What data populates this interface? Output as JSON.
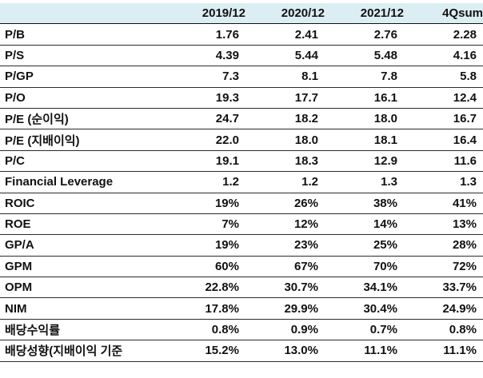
{
  "table": {
    "headers": [
      "",
      "2019/12",
      "2020/12",
      "2021/12",
      "4Qsum"
    ],
    "rows": [
      {
        "label": "P/B",
        "values": [
          "1.76",
          "2.41",
          "2.76",
          "2.28"
        ]
      },
      {
        "label": "P/S",
        "values": [
          "4.39",
          "5.44",
          "5.48",
          "4.16"
        ]
      },
      {
        "label": "P/GP",
        "values": [
          "7.3",
          "8.1",
          "7.8",
          "5.8"
        ]
      },
      {
        "label": "P/O",
        "values": [
          "19.3",
          "17.7",
          "16.1",
          "12.4"
        ]
      },
      {
        "label": "P/E (순이익)",
        "values": [
          "24.7",
          "18.2",
          "18.0",
          "16.7"
        ]
      },
      {
        "label": "P/E (지배이익)",
        "values": [
          "22.0",
          "18.0",
          "18.1",
          "16.4"
        ]
      },
      {
        "label": "P/C",
        "values": [
          "19.1",
          "18.3",
          "12.9",
          "11.6"
        ]
      },
      {
        "label": "Financial Leverage",
        "values": [
          "1.2",
          "1.2",
          "1.3",
          "1.3"
        ]
      },
      {
        "label": "ROIC",
        "values": [
          "19%",
          "26%",
          "38%",
          "41%"
        ]
      },
      {
        "label": "ROE",
        "values": [
          "7%",
          "12%",
          "14%",
          "13%"
        ]
      },
      {
        "label": "GP/A",
        "values": [
          "19%",
          "23%",
          "25%",
          "28%"
        ]
      },
      {
        "label": "GPM",
        "values": [
          "60%",
          "67%",
          "70%",
          "72%"
        ]
      },
      {
        "label": "OPM",
        "values": [
          "22.8%",
          "30.7%",
          "34.1%",
          "33.7%"
        ]
      },
      {
        "label": "NIM",
        "values": [
          "17.8%",
          "29.9%",
          "30.4%",
          "24.9%"
        ]
      },
      {
        "label": "배당수익률",
        "values": [
          "0.8%",
          "0.9%",
          "0.7%",
          "0.8%"
        ]
      },
      {
        "label": "배당성향(지배이익 기준",
        "values": [
          "15.2%",
          "13.0%",
          "11.1%",
          "11.1%"
        ]
      }
    ]
  },
  "colors": {
    "header_background": "#dbeef4",
    "rule": "#2b2b2b",
    "text": "#111111"
  }
}
